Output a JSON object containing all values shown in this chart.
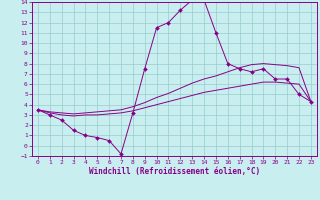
{
  "xlabel": "Windchill (Refroidissement éolien,°C)",
  "bg_color": "#c8eef0",
  "line_color": "#880088",
  "grid_color": "#99cccc",
  "xlim": [
    -0.5,
    23.5
  ],
  "ylim": [
    -1,
    14
  ],
  "xticks": [
    0,
    1,
    2,
    3,
    4,
    5,
    6,
    7,
    8,
    9,
    10,
    11,
    12,
    13,
    14,
    15,
    16,
    17,
    18,
    19,
    20,
    21,
    22,
    23
  ],
  "yticks": [
    -1,
    0,
    1,
    2,
    3,
    4,
    5,
    6,
    7,
    8,
    9,
    10,
    11,
    12,
    13,
    14
  ],
  "line1_x": [
    0,
    1,
    2,
    3,
    4,
    5,
    6,
    7,
    8,
    9,
    10,
    11,
    12,
    13,
    14,
    15,
    16,
    17,
    18,
    19,
    20,
    21,
    22,
    23
  ],
  "line1_y": [
    3.5,
    3.0,
    2.5,
    1.5,
    1.0,
    0.8,
    0.5,
    -0.8,
    3.2,
    7.5,
    11.5,
    12.0,
    13.2,
    14.2,
    14.2,
    11.0,
    8.0,
    7.5,
    7.2,
    7.5,
    6.5,
    6.5,
    5.0,
    4.3
  ],
  "line2_x": [
    0,
    1,
    2,
    3,
    4,
    5,
    6,
    7,
    8,
    9,
    10,
    11,
    12,
    13,
    14,
    15,
    16,
    17,
    18,
    19,
    20,
    21,
    22,
    23
  ],
  "line2_y": [
    3.5,
    3.3,
    3.2,
    3.1,
    3.2,
    3.3,
    3.4,
    3.5,
    3.8,
    4.2,
    4.7,
    5.1,
    5.6,
    6.1,
    6.5,
    6.8,
    7.2,
    7.6,
    7.9,
    8.0,
    7.9,
    7.8,
    7.6,
    4.3
  ],
  "line3_x": [
    0,
    1,
    2,
    3,
    4,
    5,
    6,
    7,
    8,
    9,
    10,
    11,
    12,
    13,
    14,
    15,
    16,
    17,
    18,
    19,
    20,
    21,
    22,
    23
  ],
  "line3_y": [
    3.5,
    3.2,
    3.0,
    2.9,
    3.0,
    3.0,
    3.1,
    3.2,
    3.4,
    3.7,
    4.0,
    4.3,
    4.6,
    4.9,
    5.2,
    5.4,
    5.6,
    5.8,
    6.0,
    6.2,
    6.2,
    6.1,
    6.0,
    4.3
  ]
}
